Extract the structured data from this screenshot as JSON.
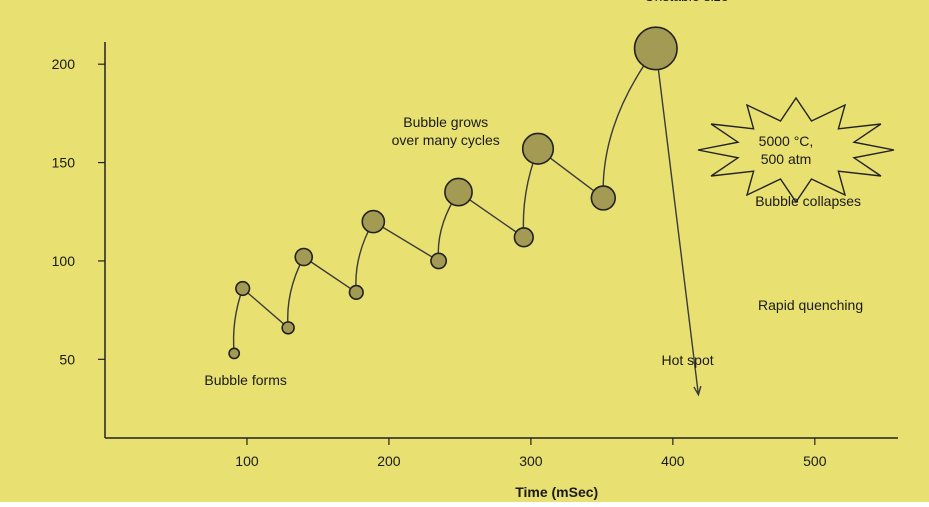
{
  "colors": {
    "background": "#e8e070",
    "bubble_fill": "#a39a54",
    "line": "#3a3a3a",
    "burst_fill": "#ffffff"
  },
  "chart_data": {
    "type": "line",
    "title": "",
    "xlabel": "Time (mSec)",
    "ylabel": "",
    "xlim": [
      0,
      560
    ],
    "ylim": [
      10,
      225
    ],
    "x_ticks": [
      100,
      200,
      300,
      400,
      500
    ],
    "y_ticks": [
      50,
      100,
      150,
      200
    ],
    "grid": false,
    "series": [
      {
        "points": [
          {
            "x": 91,
            "y": 53,
            "size": 6
          },
          {
            "x": 97,
            "y": 86,
            "size": 8
          },
          {
            "x": 129,
            "y": 66,
            "size": 7
          },
          {
            "x": 140,
            "y": 102,
            "size": 10
          },
          {
            "x": 177,
            "y": 84,
            "size": 8
          },
          {
            "x": 189,
            "y": 120,
            "size": 13
          },
          {
            "x": 235,
            "y": 100,
            "size": 9
          },
          {
            "x": 249,
            "y": 135,
            "size": 16
          },
          {
            "x": 295,
            "y": 112,
            "size": 11
          },
          {
            "x": 305,
            "y": 157,
            "size": 18
          },
          {
            "x": 351,
            "y": 132,
            "size": 14
          },
          {
            "x": 388,
            "y": 208,
            "size": 25
          }
        ],
        "quench_end": {
          "x": 418,
          "y": 32
        }
      }
    ],
    "annotations": [
      {
        "id": "bubble-forms",
        "text": "Bubble  forms",
        "x": 70,
        "y": 37
      },
      {
        "id": "bubble-grows",
        "lines": [
          "Bubble grows",
          "over many  cycles"
        ],
        "x": 240,
        "y": 168
      },
      {
        "id": "unstable-size",
        "text": "Unstable size",
        "x": 380,
        "y": 232
      },
      {
        "id": "bubble-collapses",
        "text": "Bubble  collapses",
        "x": 458,
        "y": 128
      },
      {
        "id": "rapid-quenching",
        "text": "Rapid  quenching",
        "x": 460,
        "y": 75
      },
      {
        "id": "hot-spot",
        "text": "Hot spot",
        "x": 392,
        "y": 47
      }
    ],
    "burst": {
      "lines": [
        "5000 °C,",
        "500 atm"
      ],
      "x": 478,
      "y": 178
    }
  }
}
